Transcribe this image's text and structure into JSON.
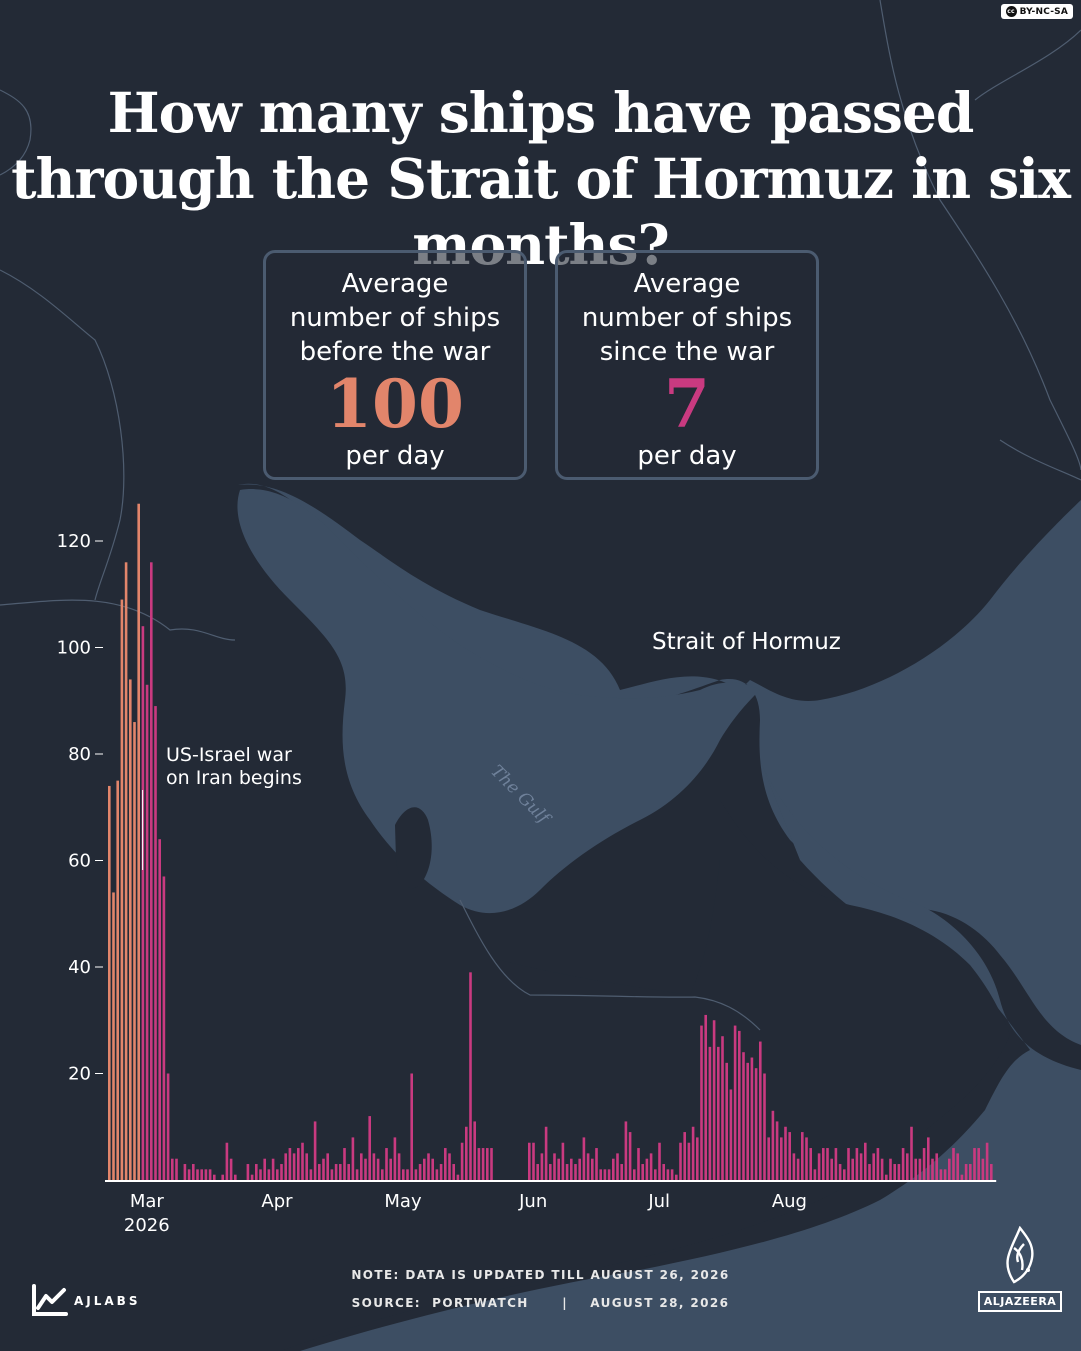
{
  "license": "BY-NC-SA",
  "title": "How many ships have passed through the Strait of Hormuz in six months?",
  "stats": {
    "before": {
      "label": "Average\nnumber of ships\nbefore the war",
      "value": "100",
      "unit": "per day"
    },
    "after": {
      "label": "Average\nnumber of ships\nsince the war",
      "value": "7",
      "unit": "per day"
    }
  },
  "map_labels": {
    "strait": "Strait of Hormuz",
    "gulf": "The Gulf"
  },
  "chart_data": {
    "type": "bar",
    "title": "",
    "xlabel": "",
    "ylabel": "",
    "ylim": [
      0,
      130
    ],
    "yticks": [
      20,
      40,
      60,
      80,
      100,
      120
    ],
    "grid": false,
    "x_start": "2026-02-20",
    "x_end": "2026-08-26",
    "x_ticks": [
      {
        "label": "Mar",
        "sub": "2026",
        "date": "2026-03-01"
      },
      {
        "label": "Apr",
        "sub": "",
        "date": "2026-04-01"
      },
      {
        "label": "May",
        "sub": "",
        "date": "2026-05-01"
      },
      {
        "label": "Jun",
        "sub": "",
        "date": "2026-06-01"
      },
      {
        "label": "Jul",
        "sub": "",
        "date": "2026-07-01"
      },
      {
        "label": "Aug",
        "sub": "",
        "date": "2026-08-01"
      }
    ],
    "colors": {
      "before": "#e2856b",
      "after": "#c93a80"
    },
    "war_start_date": "2026-02-28",
    "annotation": {
      "text": "US-Israel war\non Iran begins",
      "date": "2026-02-28"
    },
    "values": [
      74,
      54,
      75,
      109,
      116,
      94,
      86,
      127,
      104,
      93,
      116,
      89,
      64,
      57,
      20,
      4,
      4,
      0,
      3,
      2,
      3,
      2,
      2,
      2,
      2,
      1,
      0,
      1,
      7,
      4,
      1,
      0,
      0,
      3,
      1,
      3,
      2,
      4,
      2,
      4,
      2,
      3,
      5,
      6,
      5,
      6,
      7,
      5,
      2,
      11,
      3,
      4,
      5,
      2,
      3,
      3,
      6,
      3,
      8,
      2,
      5,
      4,
      12,
      5,
      4,
      2,
      6,
      4,
      8,
      5,
      2,
      2,
      20,
      2,
      3,
      4,
      5,
      4,
      2,
      3,
      6,
      5,
      3,
      1,
      7,
      10,
      39,
      11,
      6,
      6,
      6,
      6,
      0,
      0,
      0,
      0,
      0,
      0,
      0,
      0,
      7,
      7,
      3,
      5,
      10,
      3,
      5,
      4,
      7,
      3,
      4,
      3,
      4,
      8,
      5,
      4,
      6,
      2,
      2,
      2,
      4,
      5,
      3,
      11,
      9,
      2,
      6,
      3,
      4,
      5,
      2,
      7,
      3,
      2,
      2,
      1,
      7,
      9,
      7,
      10,
      8,
      29,
      31,
      25,
      30,
      25,
      27,
      22,
      17,
      29,
      28,
      24,
      22,
      23,
      21,
      26,
      20,
      8,
      13,
      11,
      8,
      10,
      9,
      5,
      4,
      9,
      8,
      6,
      2,
      5,
      6,
      6,
      4,
      6,
      3,
      2,
      6,
      4,
      6,
      5,
      7,
      3,
      5,
      6,
      4,
      1,
      4,
      3,
      3,
      6,
      5,
      10,
      4,
      4,
      6,
      8,
      4,
      5,
      2,
      2,
      4,
      6,
      5,
      1,
      3,
      3,
      6,
      6,
      4,
      7,
      3
    ]
  },
  "footer": {
    "note": "NOTE: DATA IS UPDATED TILL AUGUST 26, 2026",
    "source": "SOURCE:  PORTWATCH      |    AUGUST 28, 2026",
    "brand_left": "AJLABS",
    "brand_right": "ALJAZEERA"
  }
}
